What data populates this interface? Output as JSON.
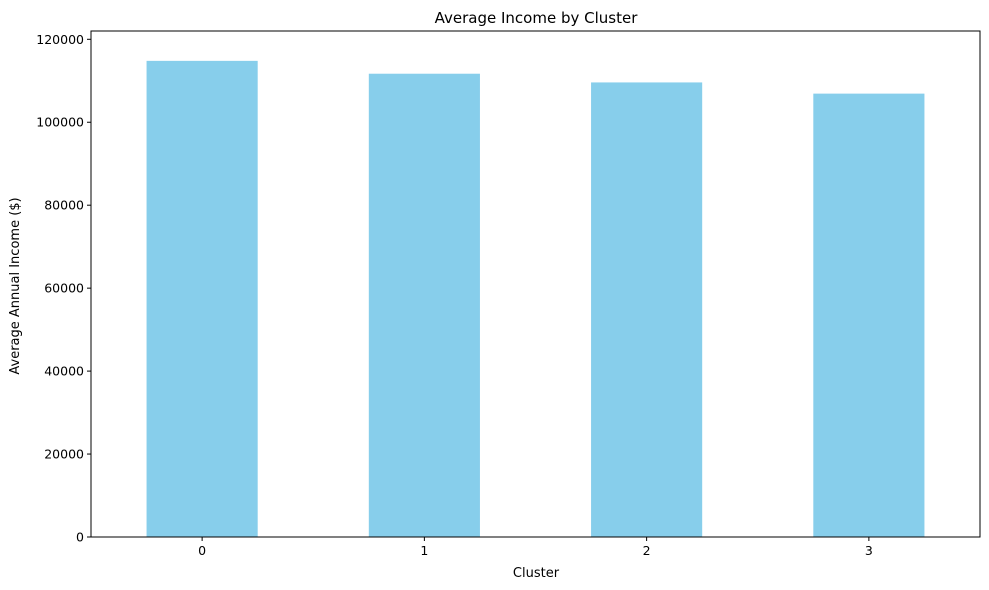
{
  "chart_data": {
    "type": "bar",
    "title": "Average Income by Cluster",
    "xlabel": "Cluster",
    "ylabel": "Average Annual Income ($)",
    "categories": [
      "0",
      "1",
      "2",
      "3"
    ],
    "values": [
      114800,
      111700,
      109600,
      106900
    ],
    "ylim": [
      0,
      120000
    ],
    "yticks": [
      0,
      20000,
      40000,
      60000,
      80000,
      100000,
      120000
    ],
    "ytick_labels": [
      "0",
      "20000",
      "40000",
      "60000",
      "80000",
      "100000",
      "120000"
    ],
    "bar_color": "#87CEEB",
    "grid": false,
    "legend": false
  }
}
